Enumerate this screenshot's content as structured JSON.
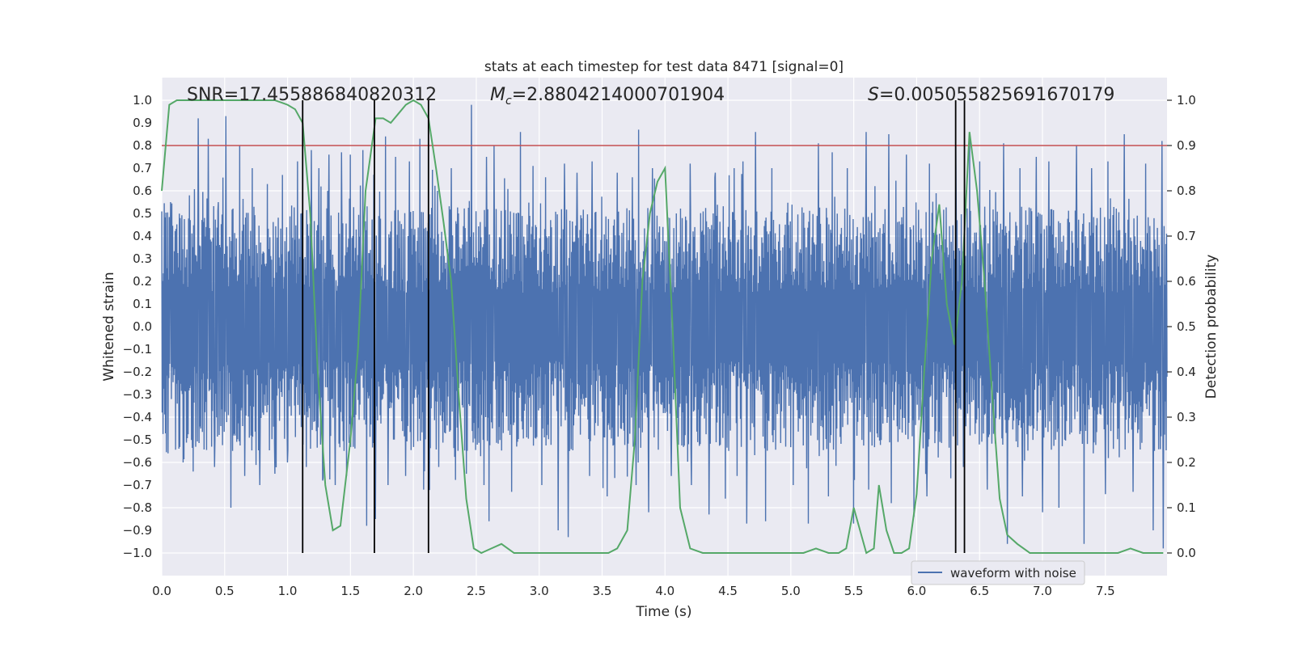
{
  "chart_data": {
    "type": "line",
    "title": "stats at each timestep for test data 8471 [signal=0]",
    "xlabel": "Time (s)",
    "ylabel_left": "Whitened strain",
    "ylabel_right": "Detection probability",
    "xlim": [
      0.0,
      7.99
    ],
    "ylim_left": [
      -1.1,
      1.1
    ],
    "ylim_right": [
      -0.05,
      1.05
    ],
    "x_ticks": [
      0.0,
      0.5,
      1.0,
      1.5,
      2.0,
      2.5,
      3.0,
      3.5,
      4.0,
      4.5,
      5.0,
      5.5,
      6.0,
      6.5,
      7.0,
      7.5
    ],
    "x_tick_labels": [
      "0.0",
      "0.5",
      "1.0",
      "1.5",
      "2.0",
      "2.5",
      "3.0",
      "3.5",
      "4.0",
      "4.5",
      "5.0",
      "5.5",
      "6.0",
      "6.5",
      "7.0",
      "7.5"
    ],
    "y_left_ticks": [
      1.0,
      0.9,
      0.8,
      0.7,
      0.6,
      0.5,
      0.4,
      0.3,
      0.2,
      0.1,
      0.0,
      -0.1,
      -0.2,
      -0.3,
      -0.4,
      -0.5,
      -0.6,
      -0.7,
      -0.8,
      -0.9,
      -1.0
    ],
    "y_left_tick_labels": [
      "1.0",
      "0.9",
      "0.8",
      "0.7",
      "0.6",
      "0.5",
      "0.4",
      "0.3",
      "0.2",
      "0.1",
      "0.0",
      "−0.1",
      "−0.2",
      "−0.3",
      "−0.4",
      "−0.5",
      "−0.6",
      "−0.7",
      "−0.8",
      "−0.9",
      "−1.0"
    ],
    "y_right_ticks": [
      1.0,
      0.9,
      0.8,
      0.7,
      0.6,
      0.5,
      0.4,
      0.3,
      0.2,
      0.1,
      0.0
    ],
    "y_right_tick_labels": [
      "1.0",
      "0.9",
      "0.8",
      "0.7",
      "0.6",
      "0.5",
      "0.4",
      "0.3",
      "0.2",
      "0.1",
      "0.0"
    ],
    "annotations": {
      "snr": "SNR=17.455886840820312",
      "mc_symbol": "M",
      "mc_sub": "c",
      "mc_value": "=2.8804214000701904",
      "s_symbol": "S",
      "s_value": "=0.005055825691670179"
    },
    "threshold": {
      "value": 0.9,
      "axis": "right",
      "color": "#c44e52"
    },
    "vertical_lines": [
      1.12,
      1.69,
      2.12,
      6.31,
      6.38
    ],
    "waveform": {
      "name": "waveform with noise",
      "color": "#4c72b0",
      "noise_seed": 8471,
      "core_amplitude": 0.35,
      "peaks_top": [
        [
          0.07,
          0.55
        ],
        [
          0.22,
          0.58
        ],
        [
          0.29,
          0.92
        ],
        [
          0.37,
          0.83
        ],
        [
          0.45,
          0.55
        ],
        [
          0.51,
          0.93
        ],
        [
          0.62,
          0.8
        ],
        [
          0.72,
          0.7
        ],
        [
          0.84,
          0.63
        ],
        [
          0.96,
          0.67
        ],
        [
          1.08,
          0.73
        ],
        [
          1.19,
          0.78
        ],
        [
          1.25,
          0.7
        ],
        [
          1.33,
          0.76
        ],
        [
          1.43,
          0.77
        ],
        [
          1.5,
          0.76
        ],
        [
          1.6,
          0.78
        ],
        [
          1.7,
          0.8
        ],
        [
          1.78,
          0.84
        ],
        [
          1.86,
          0.75
        ],
        [
          1.97,
          0.73
        ],
        [
          2.05,
          0.83
        ],
        [
          2.19,
          0.6
        ],
        [
          2.3,
          0.7
        ],
        [
          2.46,
          0.98
        ],
        [
          2.58,
          0.75
        ],
        [
          2.64,
          0.8
        ],
        [
          2.85,
          0.86
        ],
        [
          2.95,
          0.71
        ],
        [
          3.05,
          0.66
        ],
        [
          3.2,
          0.72
        ],
        [
          3.3,
          0.68
        ],
        [
          3.42,
          0.73
        ],
        [
          3.62,
          0.68
        ],
        [
          3.74,
          0.66
        ],
        [
          3.79,
          0.87
        ],
        [
          3.9,
          0.7
        ],
        [
          4.05,
          0.62
        ],
        [
          4.2,
          0.72
        ],
        [
          4.4,
          0.68
        ],
        [
          4.55,
          0.7
        ],
        [
          4.62,
          0.73
        ],
        [
          4.72,
          0.86
        ],
        [
          4.85,
          0.7
        ],
        [
          5.02,
          0.75
        ],
        [
          5.22,
          0.81
        ],
        [
          5.33,
          0.77
        ],
        [
          5.45,
          0.7
        ],
        [
          5.6,
          0.86
        ],
        [
          5.78,
          0.85
        ],
        [
          5.92,
          0.76
        ],
        [
          6.1,
          0.72
        ],
        [
          6.31,
          0.8
        ],
        [
          6.42,
          0.85
        ],
        [
          6.5,
          0.73
        ],
        [
          6.69,
          0.81
        ],
        [
          6.82,
          0.7
        ],
        [
          6.95,
          0.75
        ],
        [
          7.05,
          0.73
        ],
        [
          7.27,
          0.8
        ],
        [
          7.39,
          0.7
        ],
        [
          7.52,
          0.73
        ],
        [
          7.65,
          0.85
        ],
        [
          7.82,
          0.72
        ],
        [
          7.95,
          0.82
        ]
      ],
      "peaks_bottom": [
        [
          0.05,
          -0.56
        ],
        [
          0.17,
          -0.6
        ],
        [
          0.25,
          -0.64
        ],
        [
          0.42,
          -0.62
        ],
        [
          0.55,
          -0.8
        ],
        [
          0.66,
          -0.66
        ],
        [
          0.78,
          -0.7
        ],
        [
          0.9,
          -0.65
        ],
        [
          1.0,
          -0.6
        ],
        [
          1.15,
          -0.62
        ],
        [
          1.28,
          -0.68
        ],
        [
          1.38,
          -0.7
        ],
        [
          1.47,
          -0.66
        ],
        [
          1.63,
          -0.88
        ],
        [
          1.7,
          -0.85
        ],
        [
          1.8,
          -0.7
        ],
        [
          1.94,
          -0.66
        ],
        [
          2.08,
          -0.72
        ],
        [
          2.2,
          -0.62
        ],
        [
          2.42,
          -0.65
        ],
        [
          2.56,
          -0.7
        ],
        [
          2.6,
          -0.86
        ],
        [
          2.78,
          -0.73
        ],
        [
          3.02,
          -0.7
        ],
        [
          3.15,
          -0.9
        ],
        [
          3.23,
          -0.93
        ],
        [
          3.4,
          -0.66
        ],
        [
          3.54,
          -0.75
        ],
        [
          3.77,
          -0.7
        ],
        [
          3.87,
          -0.82
        ],
        [
          4.05,
          -0.66
        ],
        [
          4.21,
          -0.7
        ],
        [
          4.35,
          -0.83
        ],
        [
          4.48,
          -0.76
        ],
        [
          4.65,
          -0.87
        ],
        [
          4.8,
          -0.86
        ],
        [
          5.02,
          -0.7
        ],
        [
          5.14,
          -0.87
        ],
        [
          5.3,
          -0.75
        ],
        [
          5.5,
          -0.87
        ],
        [
          5.62,
          -0.72
        ],
        [
          5.8,
          -0.78
        ],
        [
          5.98,
          -0.84
        ],
        [
          6.08,
          -0.75
        ],
        [
          6.27,
          -0.67
        ],
        [
          6.37,
          -0.62
        ],
        [
          6.56,
          -0.72
        ],
        [
          6.72,
          -0.96
        ],
        [
          6.84,
          -0.75
        ],
        [
          7.0,
          -0.82
        ],
        [
          7.13,
          -0.8
        ],
        [
          7.33,
          -0.96
        ],
        [
          7.5,
          -0.74
        ],
        [
          7.72,
          -0.73
        ],
        [
          7.88,
          -0.9
        ],
        [
          7.96,
          -0.98
        ]
      ]
    },
    "probability": {
      "color": "#55a868",
      "x": [
        0.0,
        0.06,
        0.12,
        0.2,
        0.3,
        0.4,
        0.5,
        0.6,
        0.7,
        0.8,
        0.9,
        1.0,
        1.06,
        1.12,
        1.18,
        1.24,
        1.3,
        1.36,
        1.42,
        1.5,
        1.56,
        1.62,
        1.7,
        1.76,
        1.82,
        1.88,
        1.94,
        2.0,
        2.06,
        2.12,
        2.18,
        2.24,
        2.3,
        2.36,
        2.42,
        2.48,
        2.54,
        2.62,
        2.7,
        2.8,
        3.0,
        3.2,
        3.4,
        3.55,
        3.62,
        3.7,
        3.76,
        3.82,
        3.88,
        3.94,
        4.0,
        4.06,
        4.12,
        4.2,
        4.3,
        4.4,
        4.5,
        4.6,
        4.7,
        4.8,
        4.9,
        5.0,
        5.1,
        5.2,
        5.3,
        5.38,
        5.44,
        5.5,
        5.54,
        5.6,
        5.66,
        5.7,
        5.76,
        5.82,
        5.88,
        5.94,
        6.0,
        6.06,
        6.12,
        6.18,
        6.24,
        6.3,
        6.36,
        6.42,
        6.48,
        6.54,
        6.6,
        6.66,
        6.72,
        6.8,
        6.9,
        7.0,
        7.2,
        7.4,
        7.6,
        7.7,
        7.8,
        7.96
      ],
      "y": [
        0.8,
        0.99,
        1.0,
        1.0,
        1.0,
        1.0,
        1.0,
        1.0,
        1.0,
        1.0,
        1.0,
        0.99,
        0.98,
        0.95,
        0.75,
        0.4,
        0.15,
        0.05,
        0.06,
        0.25,
        0.45,
        0.8,
        0.96,
        0.96,
        0.95,
        0.97,
        0.99,
        1.0,
        0.99,
        0.96,
        0.85,
        0.73,
        0.6,
        0.35,
        0.12,
        0.01,
        0.0,
        0.01,
        0.02,
        0.0,
        0.0,
        0.0,
        0.0,
        0.0,
        0.01,
        0.05,
        0.25,
        0.6,
        0.75,
        0.82,
        0.85,
        0.5,
        0.1,
        0.01,
        0.0,
        0.0,
        0.0,
        0.0,
        0.0,
        0.0,
        0.0,
        0.0,
        0.0,
        0.01,
        0.0,
        0.0,
        0.01,
        0.1,
        0.06,
        0.0,
        0.01,
        0.15,
        0.05,
        0.0,
        0.0,
        0.01,
        0.13,
        0.4,
        0.65,
        0.77,
        0.55,
        0.46,
        0.6,
        0.93,
        0.8,
        0.6,
        0.35,
        0.12,
        0.04,
        0.02,
        0.0,
        0.0,
        0.0,
        0.0,
        0.0,
        0.01,
        0.0,
        0.0
      ]
    },
    "legend": {
      "label": "waveform with noise",
      "position": "lower-right"
    },
    "grid": true,
    "background": "#eaeaf2"
  }
}
